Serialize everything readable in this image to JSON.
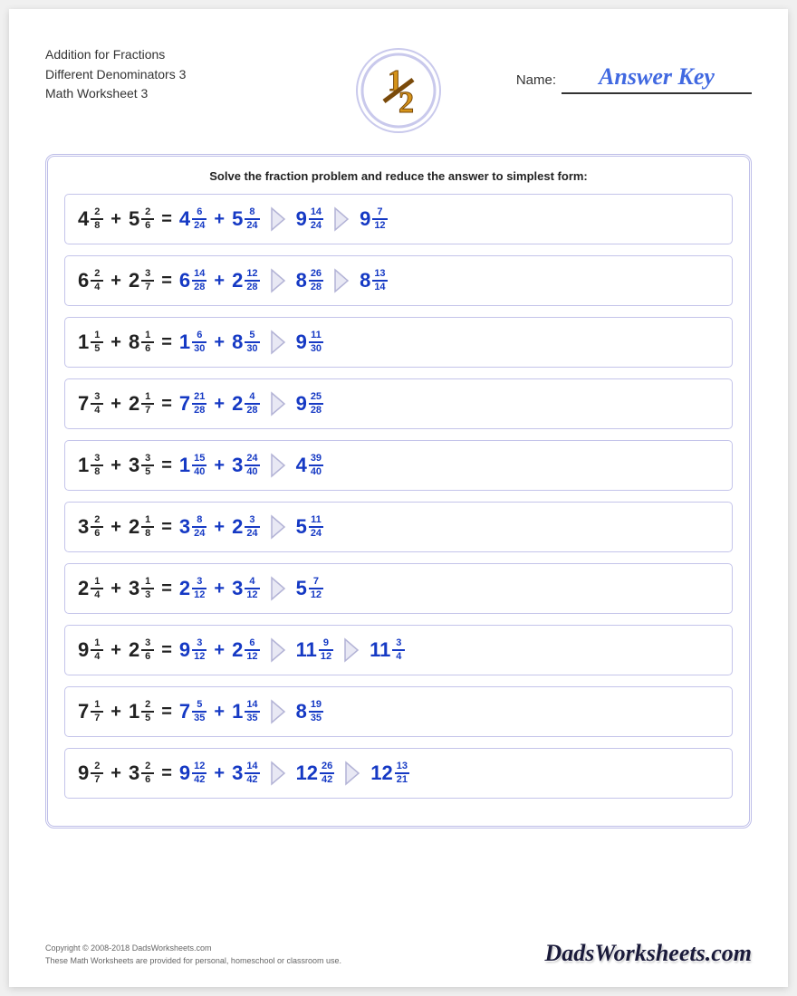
{
  "colors": {
    "question": "#222222",
    "answer": "#1539c4",
    "border": "#c4c4ea",
    "frame": "#bdbde8",
    "arrow_fill": "#e8e8f4",
    "arrow_stroke": "#b3b3d6",
    "name_value": "#4169e1"
  },
  "header": {
    "title_line1": "Addition for Fractions",
    "title_line2": "Different Denominators 3",
    "title_line3": "Math Worksheet 3",
    "name_label": "Name:",
    "name_value": "Answer Key",
    "logo_text": "½"
  },
  "instruction": "Solve the fraction problem and reduce the answer to simplest form:",
  "problems": [
    {
      "q": [
        {
          "w": "4",
          "n": "2",
          "d": "8"
        },
        {
          "w": "5",
          "n": "2",
          "d": "6"
        }
      ],
      "steps": [
        [
          {
            "w": "4",
            "n": "6",
            "d": "24"
          },
          "+",
          {
            "w": "5",
            "n": "8",
            "d": "24"
          }
        ],
        [
          {
            "w": "9",
            "n": "14",
            "d": "24"
          }
        ],
        [
          {
            "w": "9",
            "n": "7",
            "d": "12"
          }
        ]
      ]
    },
    {
      "q": [
        {
          "w": "6",
          "n": "2",
          "d": "4"
        },
        {
          "w": "2",
          "n": "3",
          "d": "7"
        }
      ],
      "steps": [
        [
          {
            "w": "6",
            "n": "14",
            "d": "28"
          },
          "+",
          {
            "w": "2",
            "n": "12",
            "d": "28"
          }
        ],
        [
          {
            "w": "8",
            "n": "26",
            "d": "28"
          }
        ],
        [
          {
            "w": "8",
            "n": "13",
            "d": "14"
          }
        ]
      ]
    },
    {
      "q": [
        {
          "w": "1",
          "n": "1",
          "d": "5"
        },
        {
          "w": "8",
          "n": "1",
          "d": "6"
        }
      ],
      "steps": [
        [
          {
            "w": "1",
            "n": "6",
            "d": "30"
          },
          "+",
          {
            "w": "8",
            "n": "5",
            "d": "30"
          }
        ],
        [
          {
            "w": "9",
            "n": "11",
            "d": "30"
          }
        ]
      ]
    },
    {
      "q": [
        {
          "w": "7",
          "n": "3",
          "d": "4"
        },
        {
          "w": "2",
          "n": "1",
          "d": "7"
        }
      ],
      "steps": [
        [
          {
            "w": "7",
            "n": "21",
            "d": "28"
          },
          "+",
          {
            "w": "2",
            "n": "4",
            "d": "28"
          }
        ],
        [
          {
            "w": "9",
            "n": "25",
            "d": "28"
          }
        ]
      ]
    },
    {
      "q": [
        {
          "w": "1",
          "n": "3",
          "d": "8"
        },
        {
          "w": "3",
          "n": "3",
          "d": "5"
        }
      ],
      "steps": [
        [
          {
            "w": "1",
            "n": "15",
            "d": "40"
          },
          "+",
          {
            "w": "3",
            "n": "24",
            "d": "40"
          }
        ],
        [
          {
            "w": "4",
            "n": "39",
            "d": "40"
          }
        ]
      ]
    },
    {
      "q": [
        {
          "w": "3",
          "n": "2",
          "d": "6"
        },
        {
          "w": "2",
          "n": "1",
          "d": "8"
        }
      ],
      "steps": [
        [
          {
            "w": "3",
            "n": "8",
            "d": "24"
          },
          "+",
          {
            "w": "2",
            "n": "3",
            "d": "24"
          }
        ],
        [
          {
            "w": "5",
            "n": "11",
            "d": "24"
          }
        ]
      ]
    },
    {
      "q": [
        {
          "w": "2",
          "n": "1",
          "d": "4"
        },
        {
          "w": "3",
          "n": "1",
          "d": "3"
        }
      ],
      "steps": [
        [
          {
            "w": "2",
            "n": "3",
            "d": "12"
          },
          "+",
          {
            "w": "3",
            "n": "4",
            "d": "12"
          }
        ],
        [
          {
            "w": "5",
            "n": "7",
            "d": "12"
          }
        ]
      ]
    },
    {
      "q": [
        {
          "w": "9",
          "n": "1",
          "d": "4"
        },
        {
          "w": "2",
          "n": "3",
          "d": "6"
        }
      ],
      "steps": [
        [
          {
            "w": "9",
            "n": "3",
            "d": "12"
          },
          "+",
          {
            "w": "2",
            "n": "6",
            "d": "12"
          }
        ],
        [
          {
            "w": "11",
            "n": "9",
            "d": "12"
          }
        ],
        [
          {
            "w": "11",
            "n": "3",
            "d": "4"
          }
        ]
      ]
    },
    {
      "q": [
        {
          "w": "7",
          "n": "1",
          "d": "7"
        },
        {
          "w": "1",
          "n": "2",
          "d": "5"
        }
      ],
      "steps": [
        [
          {
            "w": "7",
            "n": "5",
            "d": "35"
          },
          "+",
          {
            "w": "1",
            "n": "14",
            "d": "35"
          }
        ],
        [
          {
            "w": "8",
            "n": "19",
            "d": "35"
          }
        ]
      ]
    },
    {
      "q": [
        {
          "w": "9",
          "n": "2",
          "d": "7"
        },
        {
          "w": "3",
          "n": "2",
          "d": "6"
        }
      ],
      "steps": [
        [
          {
            "w": "9",
            "n": "12",
            "d": "42"
          },
          "+",
          {
            "w": "3",
            "n": "14",
            "d": "42"
          }
        ],
        [
          {
            "w": "12",
            "n": "26",
            "d": "42"
          }
        ],
        [
          {
            "w": "12",
            "n": "13",
            "d": "21"
          }
        ]
      ]
    }
  ],
  "footer": {
    "copyright_line1": "Copyright © 2008-2018 DadsWorksheets.com",
    "copyright_line2": "These Math Worksheets are provided for personal, homeschool or classroom use.",
    "brand": "DadsWorksheets.com"
  }
}
